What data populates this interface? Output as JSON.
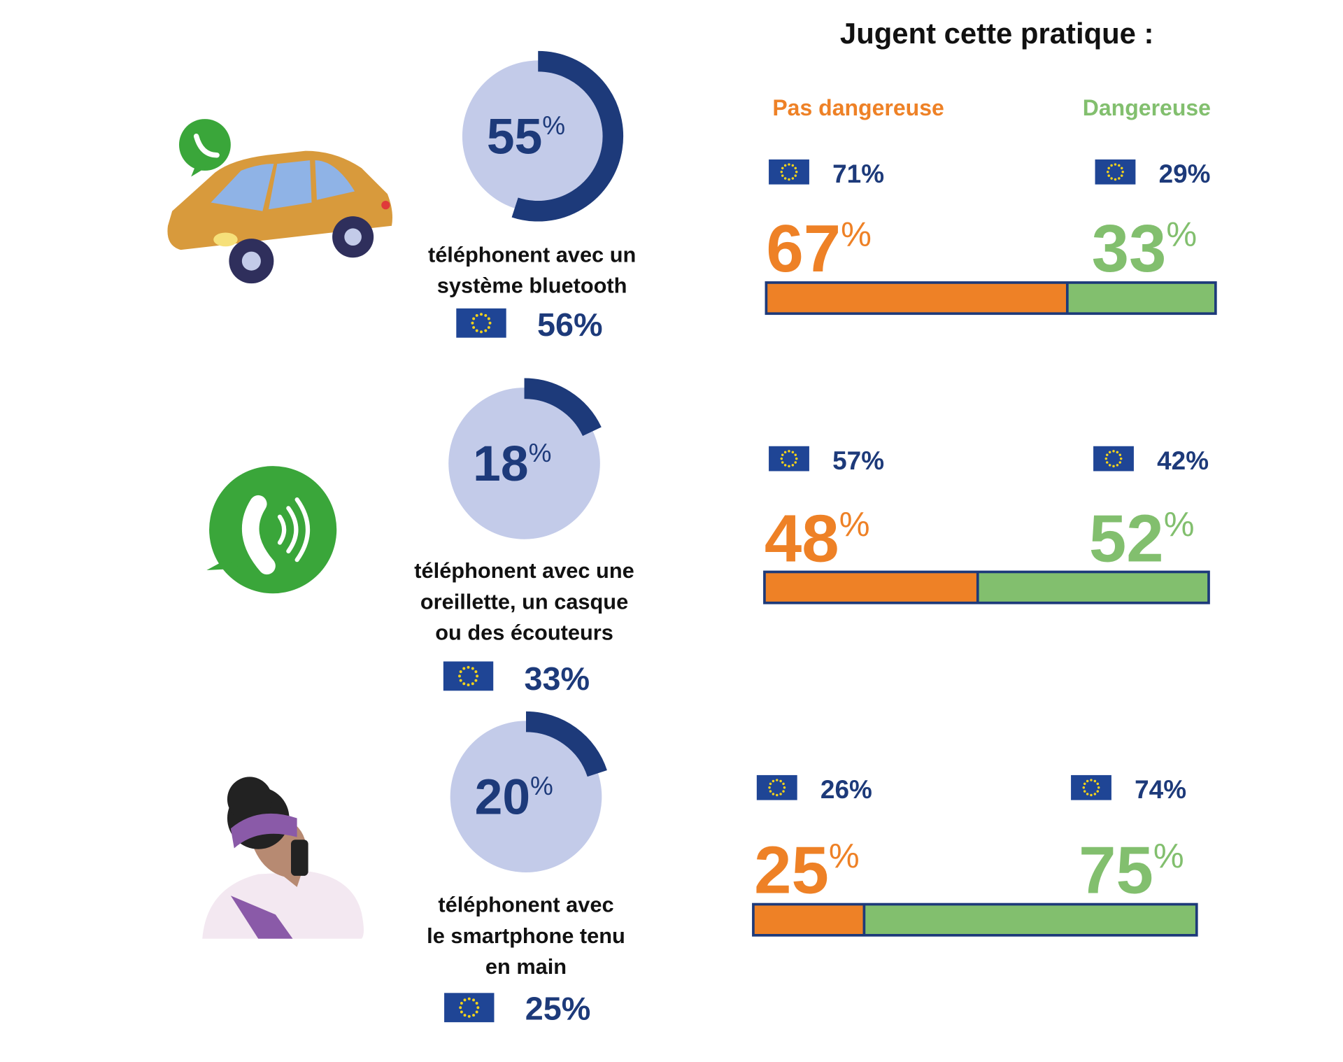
{
  "title": "Jugent cette pratique :",
  "unit": "%",
  "legend": {
    "not_dangerous": {
      "label": "Pas dangereuse",
      "color": "#ee8126"
    },
    "dangerous": {
      "label": "Dangereuse",
      "color": "#82bf6e"
    }
  },
  "share_color": "#1d3a7a",
  "share_bg_color": "#c3cbe9",
  "rows": [
    {
      "label_lines": [
        "téléphonent avec un",
        "système bluetooth"
      ],
      "share": 55,
      "eu_share": 56,
      "not_dangerous": 67,
      "dangerous": 33,
      "eu_not_dangerous": 71,
      "eu_dangerous": 29
    },
    {
      "label_lines": [
        "téléphonent avec une",
        "oreillette, un casque",
        "ou des écouteurs"
      ],
      "share": 18,
      "eu_share": 33,
      "not_dangerous": 48,
      "dangerous": 52,
      "eu_not_dangerous": 57,
      "eu_dangerous": 42
    },
    {
      "label_lines": [
        "téléphonent avec",
        "le smartphone tenu",
        "en main"
      ],
      "share": 20,
      "eu_share": 25,
      "not_dangerous": 25,
      "dangerous": 75,
      "eu_not_dangerous": 26,
      "eu_dangerous": 74
    }
  ]
}
